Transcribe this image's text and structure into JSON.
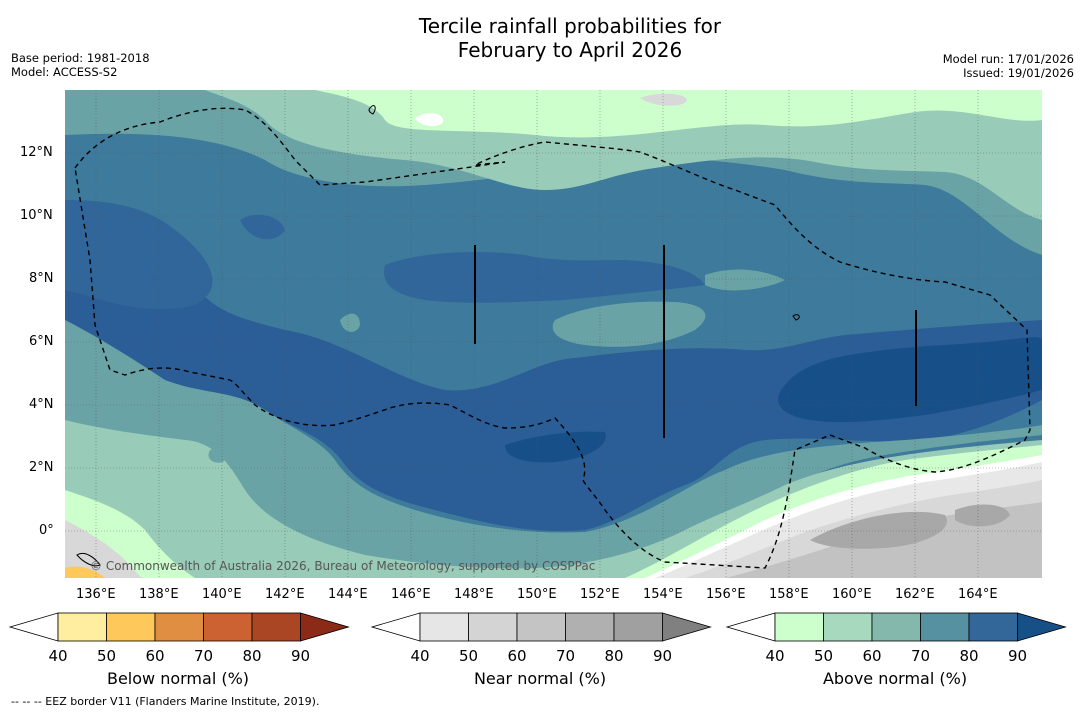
{
  "title_line1": "Tercile rainfall probabilities for",
  "title_line2": "February to April 2026",
  "meta_left": [
    "Base period: 1981-2018",
    "Model: ACCESS-S2"
  ],
  "meta_right": [
    "Model run: 17/01/2026",
    "Issued: 19/01/2026"
  ],
  "copyright": "© Commonwealth of Australia 2026, Bureau of Meteorology, supported by COSPPac",
  "footer": "-- -- -- EEZ border V11 (Flanders Marine Institute, 2019).",
  "map_extent": {
    "lon_min": 134.9,
    "lon_max": 165.9,
    "lat_min": -1.5,
    "lat_max": 14
  },
  "lon_ticks": [
    "136°E",
    "138°E",
    "140°E",
    "142°E",
    "144°E",
    "146°E",
    "148°E",
    "150°E",
    "152°E",
    "154°E",
    "156°E",
    "158°E",
    "160°E",
    "162°E",
    "164°E"
  ],
  "lat_ticks": [
    "12°N",
    "10°N",
    "8°N",
    "6°N",
    "4°N",
    "2°N",
    "0°"
  ],
  "colorbars": [
    {
      "label": "Below normal (%)",
      "ticks": [
        "40",
        "50",
        "60",
        "70",
        "80",
        "90"
      ],
      "colors": [
        "#ffffff",
        "#ffeda0",
        "#fec85a",
        "#e08e42",
        "#cc6231",
        "#aa4623",
        "#8b2a16"
      ]
    },
    {
      "label": "Near normal (%)",
      "ticks": [
        "40",
        "50",
        "60",
        "70",
        "80",
        "90"
      ],
      "colors": [
        "#ffffff",
        "#e6e6e6",
        "#d4d4d4",
        "#c4c4c4",
        "#b0b0b0",
        "#a0a0a0",
        "#808080"
      ]
    },
    {
      "label": "Above normal (%)",
      "ticks": [
        "40",
        "50",
        "60",
        "70",
        "80",
        "90"
      ],
      "colors": [
        "#ffffff",
        "#ccffcc",
        "#a6d9bd",
        "#84b8ad",
        "#5591a1",
        "#336699",
        "#175087"
      ]
    }
  ],
  "colors": {
    "c50": "#ccffcc",
    "c60": "#99ccb8",
    "c70": "#6aa3a6",
    "c80": "#3d7a9b",
    "c85": "#31669a",
    "c90": "#2b5d96",
    "c95": "#174f89",
    "grey1": "#e8e8e8",
    "grey2": "#d8d8d8",
    "grey3": "#c2c2c2",
    "grey4": "#a8a8a8"
  }
}
